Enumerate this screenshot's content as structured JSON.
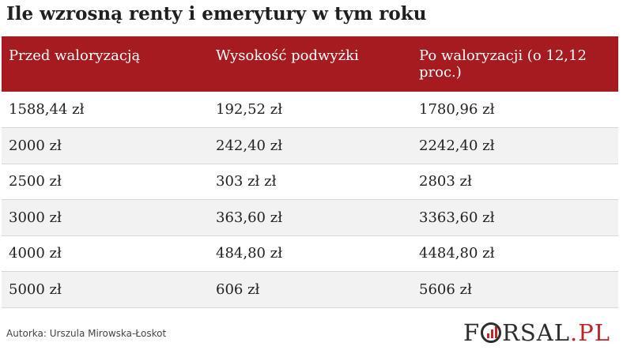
{
  "title": "Ile wzrosną renty i emerytury w tym roku",
  "table": {
    "headers": [
      "Przed waloryzacją",
      "Wysokość podwyżki",
      "Po waloryzacji (o 12,12 proc.)"
    ],
    "rows": [
      [
        "1588,44 zł",
        "192,52 zł",
        "1780,96 zł"
      ],
      [
        "2000 zł",
        "242,40 zł",
        "2242,40 zł"
      ],
      [
        "2500 zł",
        "303 zł zł",
        "2803 zł"
      ],
      [
        "3000 zł",
        "363,60 zł",
        "3363,60 zł"
      ],
      [
        "4000 zł",
        "484,80 zł",
        "4484,80 zł"
      ],
      [
        "5000 zł",
        "606 zł",
        "5606 zł"
      ]
    ],
    "header_color": "#a51b1f",
    "stripe_color": "#f2f2f2"
  },
  "author": "Autorka: Urszula Mirowska-Łoskot",
  "logo": {
    "text_before": "F",
    "text_after": "RSAL",
    "text_suffix": ".PL",
    "icon": "bar-chart-ring-icon",
    "accent_color": "#c0242a"
  }
}
